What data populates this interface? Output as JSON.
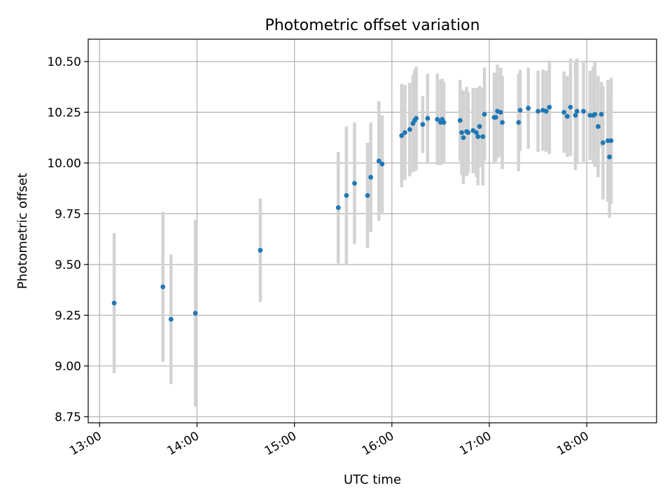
{
  "chart_data": {
    "type": "scatter",
    "title": "Photometric offset variation",
    "xlabel": "UTC time",
    "ylabel": "Photometric offset",
    "x_ticks": [
      "13:00",
      "14:00",
      "15:00",
      "16:00",
      "17:00",
      "18:00"
    ],
    "y_ticks": [
      "8.75",
      "9.00",
      "9.25",
      "9.50",
      "9.75",
      "10.00",
      "10.25",
      "10.50"
    ],
    "xlim": [
      "12:53",
      "18:43"
    ],
    "ylim": [
      8.72,
      10.61
    ],
    "grid": true,
    "colors": {
      "points": "#1f77b4",
      "error_bars": "#d3d3d3"
    },
    "series": [
      {
        "x": [
          "13:09",
          "13:39",
          "13:44",
          "13:59",
          "14:39",
          "15:27",
          "15:32",
          "15:37",
          "15:45",
          "15:47",
          "15:52",
          "15:54",
          "16:06",
          "16:08",
          "16:11",
          "16:13",
          "16:14",
          "16:15",
          "16:19",
          "16:22",
          "16:28",
          "16:30",
          "16:31",
          "16:32",
          "16:42",
          "16:43",
          "16:44",
          "16:46",
          "16:47",
          "16:50",
          "16:52",
          "16:53",
          "16:54",
          "16:56",
          "16:57",
          "17:03",
          "17:04",
          "17:05",
          "17:07",
          "17:08",
          "17:18",
          "17:19",
          "17:24",
          "17:30",
          "17:33",
          "17:35",
          "17:37",
          "17:46",
          "17:48",
          "17:50",
          "17:53",
          "17:54",
          "17:58",
          "18:02",
          "18:04",
          "18:05",
          "18:07",
          "18:09",
          "18:10",
          "18:13",
          "18:14",
          "18:15"
        ],
        "y": [
          9.31,
          9.39,
          9.23,
          9.26,
          9.57,
          9.78,
          9.84,
          9.9,
          9.84,
          9.93,
          10.01,
          9.995,
          10.135,
          10.15,
          10.165,
          10.195,
          10.21,
          10.22,
          10.19,
          10.22,
          10.215,
          10.2,
          10.215,
          10.2,
          10.21,
          10.15,
          10.125,
          10.155,
          10.15,
          10.16,
          10.15,
          10.13,
          10.18,
          10.13,
          10.24,
          10.225,
          10.225,
          10.255,
          10.25,
          10.2,
          10.2,
          10.26,
          10.27,
          10.255,
          10.26,
          10.255,
          10.275,
          10.25,
          10.23,
          10.275,
          10.235,
          10.255,
          10.255,
          10.235,
          10.235,
          10.24,
          10.18,
          10.24,
          10.1,
          10.11,
          10.03,
          10.11
        ],
        "err": [
          0.345,
          0.37,
          0.32,
          0.46,
          0.255,
          0.275,
          0.34,
          0.3,
          0.26,
          0.27,
          0.295,
          0.24,
          0.255,
          0.235,
          0.23,
          0.24,
          0.25,
          0.255,
          0.14,
          0.22,
          0.225,
          0.21,
          0.2,
          0.2,
          0.2,
          0.21,
          0.23,
          0.22,
          0.2,
          0.21,
          0.22,
          0.24,
          0.2,
          0.24,
          0.23,
          0.22,
          0.22,
          0.23,
          0.22,
          0.23,
          0.24,
          0.2,
          0.2,
          0.2,
          0.2,
          0.2,
          0.23,
          0.2,
          0.2,
          0.24,
          0.27,
          0.26,
          0.25,
          0.22,
          0.24,
          0.26,
          0.25,
          0.16,
          0.28,
          0.3,
          0.3,
          0.31
        ]
      }
    ]
  }
}
